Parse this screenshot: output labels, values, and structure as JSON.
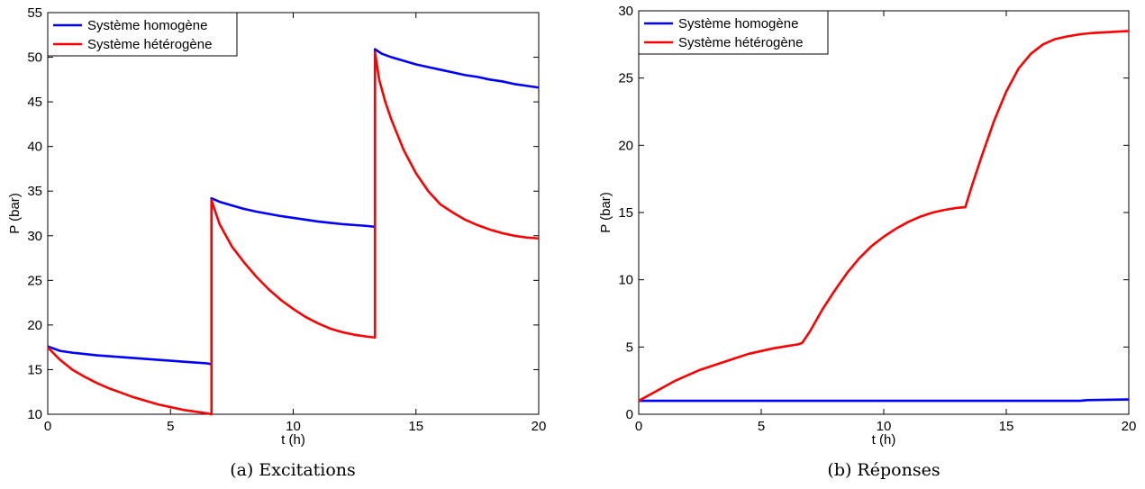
{
  "chart_data": [
    {
      "type": "line",
      "caption": "(a) Excitations",
      "xlabel": "t (h)",
      "ylabel": "P (bar)",
      "xlim": [
        0,
        20
      ],
      "ylim": [
        10,
        55
      ],
      "xticks": [
        0,
        5,
        10,
        15,
        20
      ],
      "yticks": [
        10,
        15,
        20,
        25,
        30,
        35,
        40,
        45,
        50,
        55
      ],
      "grid": false,
      "legend_position": "top-left",
      "series": [
        {
          "name": "Système homogène",
          "color": "#0000ff",
          "x": [
            0,
            0.5,
            1,
            1.5,
            2,
            2.5,
            3,
            3.5,
            4,
            4.5,
            5,
            5.5,
            6,
            6.5,
            6.67,
            6.67,
            7,
            7.5,
            8,
            8.5,
            9,
            9.5,
            10,
            10.5,
            11,
            11.5,
            12,
            12.5,
            13,
            13.33,
            13.33,
            13.6,
            14,
            14.5,
            15,
            15.5,
            16,
            16.5,
            17,
            17.5,
            18,
            18.5,
            19,
            19.5,
            20
          ],
          "y": [
            17.6,
            17.1,
            16.9,
            16.75,
            16.6,
            16.5,
            16.4,
            16.3,
            16.2,
            16.1,
            16.0,
            15.9,
            15.8,
            15.7,
            15.6,
            34.2,
            33.8,
            33.4,
            33.0,
            32.7,
            32.45,
            32.2,
            32.0,
            31.8,
            31.6,
            31.45,
            31.3,
            31.2,
            31.1,
            31.0,
            50.9,
            50.4,
            50.0,
            49.6,
            49.2,
            48.9,
            48.6,
            48.3,
            48.0,
            47.8,
            47.5,
            47.3,
            47.0,
            46.8,
            46.6
          ]
        },
        {
          "name": "Système hétérogène",
          "color": "#ff0000",
          "x": [
            0,
            0.25,
            0.5,
            1,
            1.5,
            2,
            2.5,
            3,
            3.5,
            4,
            4.5,
            5,
            5.5,
            6,
            6.5,
            6.67,
            6.67,
            6.85,
            7,
            7.5,
            8,
            8.5,
            9,
            9.5,
            10,
            10.5,
            11,
            11.5,
            12,
            12.5,
            13,
            13.33,
            13.33,
            13.5,
            13.75,
            14,
            14.5,
            15,
            15.5,
            16,
            16.5,
            17,
            17.5,
            18,
            18.5,
            19,
            19.5,
            20
          ],
          "y": [
            17.5,
            16.8,
            16.1,
            15.0,
            14.2,
            13.5,
            12.9,
            12.4,
            11.9,
            11.5,
            11.1,
            10.8,
            10.5,
            10.3,
            10.1,
            10.0,
            34.0,
            32.5,
            31.3,
            28.8,
            27.0,
            25.4,
            24.0,
            22.8,
            21.8,
            20.9,
            20.2,
            19.6,
            19.2,
            18.9,
            18.7,
            18.6,
            50.6,
            47.5,
            45.0,
            43.0,
            39.6,
            37.0,
            35.0,
            33.5,
            32.6,
            31.8,
            31.2,
            30.7,
            30.3,
            30.0,
            29.8,
            29.7
          ]
        }
      ]
    },
    {
      "type": "line",
      "caption": "(b) Réponses",
      "xlabel": "t (h)",
      "ylabel": "P (bar)",
      "xlim": [
        0,
        20
      ],
      "ylim": [
        0,
        30
      ],
      "xticks": [
        0,
        5,
        10,
        15,
        20
      ],
      "yticks": [
        0,
        5,
        10,
        15,
        20,
        25,
        30
      ],
      "grid": false,
      "legend_position": "top-left",
      "series": [
        {
          "name": "Système homogène",
          "color": "#0000ff",
          "x": [
            0,
            2,
            4,
            6,
            8,
            10,
            12,
            14,
            16,
            18,
            18.3,
            20
          ],
          "y": [
            1.0,
            1.0,
            1.0,
            1.0,
            1.0,
            1.0,
            1.0,
            1.0,
            1.0,
            1.0,
            1.05,
            1.1
          ]
        },
        {
          "name": "Système hétérogène",
          "color": "#ff0000",
          "x": [
            0,
            0.5,
            1,
            1.5,
            2,
            2.5,
            3,
            3.5,
            4,
            4.5,
            5,
            5.5,
            6,
            6.5,
            6.67,
            7,
            7.5,
            8,
            8.5,
            9,
            9.5,
            10,
            10.5,
            11,
            11.5,
            12,
            12.5,
            13,
            13.33,
            13.6,
            14,
            14.5,
            15,
            15.5,
            16,
            16.5,
            17,
            17.5,
            18,
            18.5,
            19,
            19.5,
            20
          ],
          "y": [
            1.0,
            1.5,
            2.0,
            2.5,
            2.9,
            3.3,
            3.6,
            3.9,
            4.2,
            4.5,
            4.7,
            4.9,
            5.05,
            5.2,
            5.3,
            6.2,
            7.8,
            9.2,
            10.5,
            11.6,
            12.5,
            13.2,
            13.8,
            14.3,
            14.7,
            15.0,
            15.2,
            15.35,
            15.4,
            17.0,
            19.2,
            21.8,
            24.0,
            25.7,
            26.8,
            27.5,
            27.9,
            28.1,
            28.25,
            28.35,
            28.4,
            28.45,
            28.5
          ]
        }
      ]
    }
  ]
}
